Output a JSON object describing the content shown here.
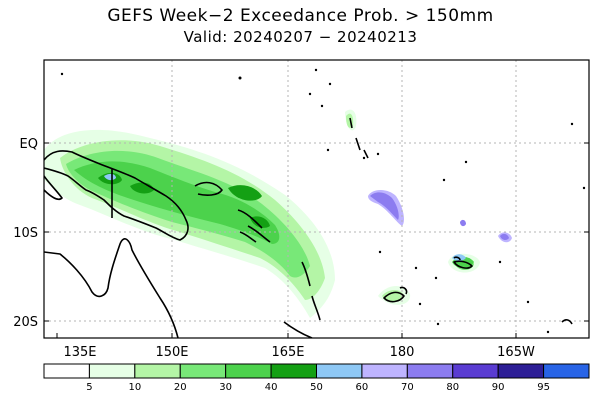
{
  "title": {
    "line1": "GEFS Week−2 Exceedance Prob. > 150mm",
    "line2": "Valid: 20240207 − 20240213"
  },
  "axes": {
    "lat_labels": [
      "EQ",
      "10S",
      "20S"
    ],
    "lon_labels": [
      "135E",
      "150E",
      "165E",
      "180",
      "165W"
    ]
  },
  "legend": {
    "levels": [
      "5",
      "10",
      "20",
      "30",
      "40",
      "50",
      "60",
      "70",
      "80",
      "90",
      "95"
    ],
    "colors": [
      "#ffffff",
      "#e6ffe6",
      "#b4f5a6",
      "#78e878",
      "#4cd24c",
      "#14a014",
      "#8ec8f5",
      "#beb4ff",
      "#8c7cf0",
      "#5a3cd2",
      "#2d1e96",
      "#2864e6"
    ]
  }
}
